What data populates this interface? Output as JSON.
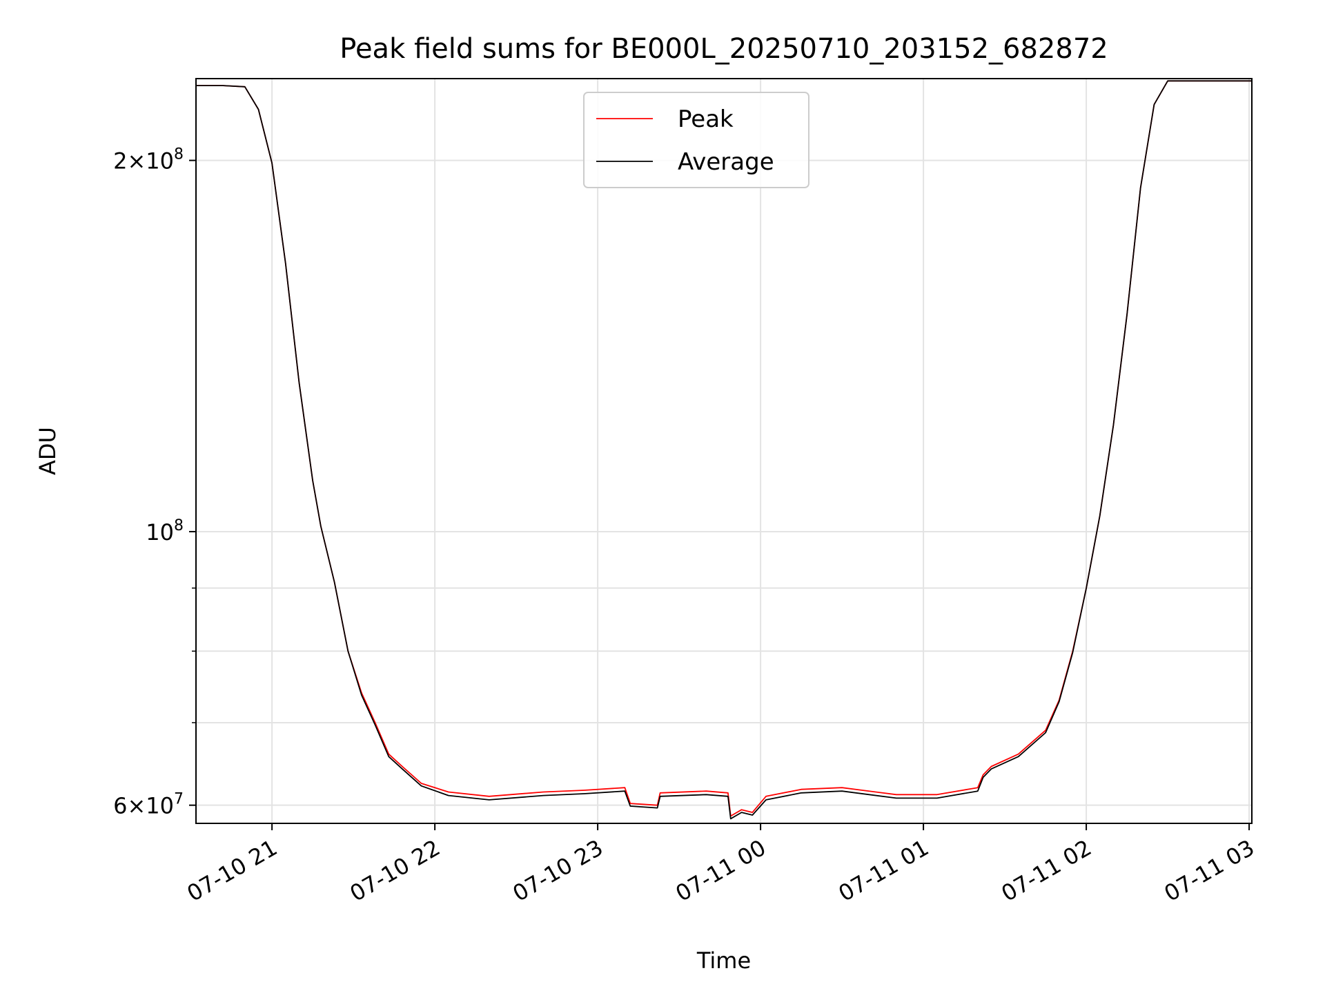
{
  "chart_data": {
    "type": "line",
    "title": "Peak field sums for BE000L_20250710_203152_682872",
    "xlabel": "Time",
    "ylabel": "ADU",
    "yscale": "log",
    "ylim": [
      58000000,
      233000000
    ],
    "xlim": [
      "2025-07-10 20:32",
      "2025-07-11 03:01"
    ],
    "x_ticks": [
      {
        "t": "2025-07-10 21:00",
        "label": "07-10 21"
      },
      {
        "t": "2025-07-10 22:00",
        "label": "07-10 22"
      },
      {
        "t": "2025-07-10 23:00",
        "label": "07-10 23"
      },
      {
        "t": "2025-07-11 00:00",
        "label": "07-11 00"
      },
      {
        "t": "2025-07-11 01:00",
        "label": "07-11 01"
      },
      {
        "t": "2025-07-11 02:00",
        "label": "07-11 02"
      },
      {
        "t": "2025-07-11 03:00",
        "label": "07-11 03"
      }
    ],
    "y_major_ticks": [
      {
        "v": 60000000,
        "mant": "6",
        "exp": "7"
      },
      {
        "v": 100000000,
        "mant": "",
        "exp": "8"
      },
      {
        "v": 200000000,
        "mant": "2",
        "exp": "8"
      }
    ],
    "y_minor_ticks": [
      70000000,
      80000000,
      90000000
    ],
    "grid": true,
    "legend_position": "upper center",
    "series": [
      {
        "name": "Peak",
        "color": "#ff0000",
        "points": [
          [
            "2025-07-10 20:32",
            230000000
          ],
          [
            "2025-07-10 20:42",
            230000000
          ],
          [
            "2025-07-10 20:50",
            229500000
          ],
          [
            "2025-07-10 20:55",
            220000000
          ],
          [
            "2025-07-10 21:00",
            199000000
          ],
          [
            "2025-07-10 21:05",
            165000000
          ],
          [
            "2025-07-10 21:10",
            132000000
          ],
          [
            "2025-07-10 21:15",
            110000000
          ],
          [
            "2025-07-10 21:18",
            101000000
          ],
          [
            "2025-07-10 21:23",
            91000000
          ],
          [
            "2025-07-10 21:28",
            80000000
          ],
          [
            "2025-07-10 21:33",
            74000000
          ],
          [
            "2025-07-10 21:38",
            70000000
          ],
          [
            "2025-07-10 21:43",
            66000000
          ],
          [
            "2025-07-10 21:48",
            64500000
          ],
          [
            "2025-07-10 21:55",
            62500000
          ],
          [
            "2025-07-10 22:05",
            61500000
          ],
          [
            "2025-07-10 22:20",
            61000000
          ],
          [
            "2025-07-10 22:40",
            61500000
          ],
          [
            "2025-07-10 22:55",
            61700000
          ],
          [
            "2025-07-10 23:10",
            62000000
          ],
          [
            "2025-07-10 23:12",
            60200000
          ],
          [
            "2025-07-10 23:22",
            60000000
          ],
          [
            "2025-07-10 23:23",
            61400000
          ],
          [
            "2025-07-10 23:40",
            61600000
          ],
          [
            "2025-07-10 23:48",
            61400000
          ],
          [
            "2025-07-10 23:49",
            58800000
          ],
          [
            "2025-07-10 23:53",
            59500000
          ],
          [
            "2025-07-10 23:57",
            59200000
          ],
          [
            "2025-07-11 00:02",
            61000000
          ],
          [
            "2025-07-11 00:15",
            61800000
          ],
          [
            "2025-07-11 00:30",
            62000000
          ],
          [
            "2025-07-11 00:50",
            61200000
          ],
          [
            "2025-07-11 01:05",
            61200000
          ],
          [
            "2025-07-11 01:20",
            62000000
          ],
          [
            "2025-07-11 01:22",
            63500000
          ],
          [
            "2025-07-11 01:25",
            64500000
          ],
          [
            "2025-07-11 01:35",
            66000000
          ],
          [
            "2025-07-11 01:45",
            69000000
          ],
          [
            "2025-07-11 01:50",
            73000000
          ],
          [
            "2025-07-11 01:55",
            80000000
          ],
          [
            "2025-07-11 02:00",
            90000000
          ],
          [
            "2025-07-11 02:05",
            103000000
          ],
          [
            "2025-07-11 02:10",
            122000000
          ],
          [
            "2025-07-11 02:15",
            150000000
          ],
          [
            "2025-07-11 02:20",
            190000000
          ],
          [
            "2025-07-11 02:25",
            222000000
          ],
          [
            "2025-07-11 02:30",
            232000000
          ],
          [
            "2025-07-11 03:01",
            232000000
          ]
        ]
      },
      {
        "name": "Average",
        "color": "#000000",
        "points": [
          [
            "2025-07-10 20:32",
            230000000
          ],
          [
            "2025-07-10 20:42",
            230000000
          ],
          [
            "2025-07-10 20:50",
            229500000
          ],
          [
            "2025-07-10 20:55",
            220000000
          ],
          [
            "2025-07-10 21:00",
            199000000
          ],
          [
            "2025-07-10 21:05",
            165000000
          ],
          [
            "2025-07-10 21:10",
            132000000
          ],
          [
            "2025-07-10 21:15",
            110000000
          ],
          [
            "2025-07-10 21:18",
            101000000
          ],
          [
            "2025-07-10 21:23",
            91000000
          ],
          [
            "2025-07-10 21:28",
            80000000
          ],
          [
            "2025-07-10 21:33",
            73700000
          ],
          [
            "2025-07-10 21:38",
            69700000
          ],
          [
            "2025-07-10 21:43",
            65700000
          ],
          [
            "2025-07-10 21:48",
            64200000
          ],
          [
            "2025-07-10 21:55",
            62200000
          ],
          [
            "2025-07-10 22:05",
            61100000
          ],
          [
            "2025-07-10 22:20",
            60600000
          ],
          [
            "2025-07-10 22:40",
            61100000
          ],
          [
            "2025-07-10 22:55",
            61300000
          ],
          [
            "2025-07-10 23:10",
            61600000
          ],
          [
            "2025-07-10 23:12",
            59900000
          ],
          [
            "2025-07-10 23:22",
            59700000
          ],
          [
            "2025-07-10 23:23",
            61000000
          ],
          [
            "2025-07-10 23:40",
            61200000
          ],
          [
            "2025-07-10 23:48",
            61000000
          ],
          [
            "2025-07-10 23:49",
            58500000
          ],
          [
            "2025-07-10 23:53",
            59200000
          ],
          [
            "2025-07-10 23:57",
            58900000
          ],
          [
            "2025-07-11 00:02",
            60600000
          ],
          [
            "2025-07-11 00:15",
            61400000
          ],
          [
            "2025-07-11 00:30",
            61600000
          ],
          [
            "2025-07-11 00:50",
            60800000
          ],
          [
            "2025-07-11 01:05",
            60800000
          ],
          [
            "2025-07-11 01:20",
            61600000
          ],
          [
            "2025-07-11 01:22",
            63200000
          ],
          [
            "2025-07-11 01:25",
            64200000
          ],
          [
            "2025-07-11 01:35",
            65700000
          ],
          [
            "2025-07-11 01:45",
            68700000
          ],
          [
            "2025-07-11 01:50",
            72800000
          ],
          [
            "2025-07-11 01:55",
            79800000
          ],
          [
            "2025-07-11 02:00",
            90000000
          ],
          [
            "2025-07-11 02:05",
            103000000
          ],
          [
            "2025-07-11 02:10",
            122000000
          ],
          [
            "2025-07-11 02:15",
            150000000
          ],
          [
            "2025-07-11 02:20",
            190000000
          ],
          [
            "2025-07-11 02:25",
            222000000
          ],
          [
            "2025-07-11 02:30",
            232000000
          ],
          [
            "2025-07-11 03:01",
            232000000
          ]
        ]
      }
    ]
  }
}
